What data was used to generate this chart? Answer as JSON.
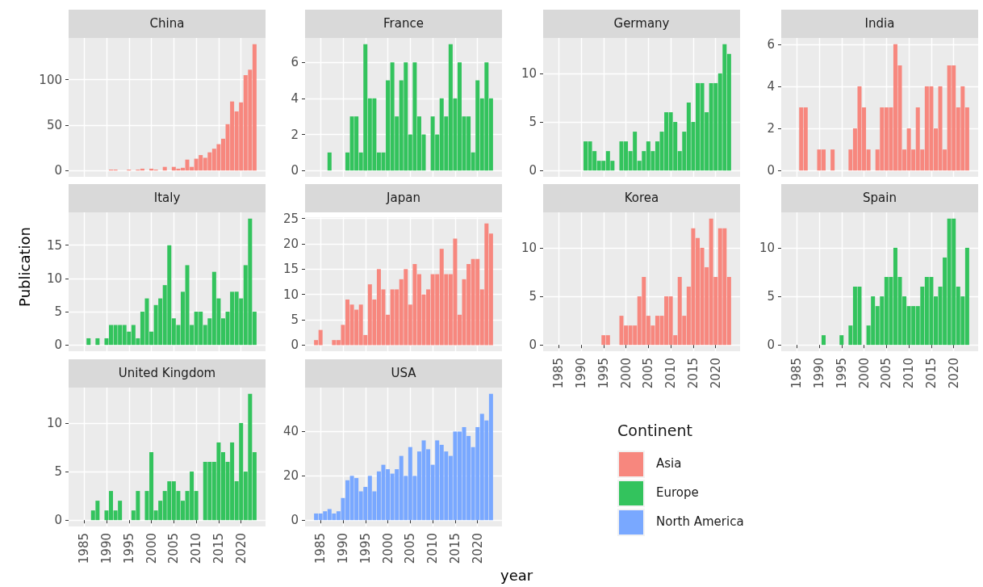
{
  "chart_data": [
    {
      "type": "bar",
      "title": "China",
      "legend_title": "Continent",
      "legend": "right",
      "grid": true,
      "tick_labels": "y",
      "xlim": [
        1981.55,
        2025.45
      ],
      "xticks": [
        1985,
        1990,
        1995,
        2000,
        2005,
        2010,
        2015,
        2020
      ],
      "ylim": [
        -6.95,
        145.95
      ],
      "yticks": [
        0,
        50,
        100
      ],
      "x": [
        1991,
        1992,
        1995,
        1997,
        1998,
        2000,
        2001,
        2003,
        2005,
        2006,
        2007,
        2008,
        2009,
        2010,
        2011,
        2012,
        2013,
        2014,
        2015,
        2016,
        2017,
        2018,
        2019,
        2020,
        2021,
        2022,
        2023
      ],
      "series": [
        {
          "name": "Asia",
          "color": "#f7877e",
          "values": [
            1,
            1,
            1,
            1,
            2,
            2,
            1,
            4,
            4,
            2,
            3,
            12,
            4,
            13,
            17,
            14,
            20,
            24,
            29,
            35,
            51,
            76,
            65,
            75,
            105,
            111,
            139
          ]
        }
      ]
    },
    {
      "type": "bar",
      "title": "France",
      "legend": "right",
      "grid": true,
      "tick_labels": "y",
      "xlim": [
        1981.55,
        2025.45
      ],
      "xticks": [
        1985,
        1990,
        1995,
        2000,
        2005,
        2010,
        2015,
        2020
      ],
      "ylim": [
        -0.35,
        7.35
      ],
      "yticks": [
        0,
        2,
        4,
        6
      ],
      "x": [
        1987,
        1991,
        1992,
        1993,
        1994,
        1995,
        1996,
        1997,
        1998,
        1999,
        2000,
        2001,
        2002,
        2003,
        2004,
        2005,
        2006,
        2007,
        2008,
        2010,
        2011,
        2012,
        2013,
        2014,
        2015,
        2016,
        2017,
        2018,
        2019,
        2020,
        2021,
        2022,
        2023
      ],
      "series": [
        {
          "name": "Europe",
          "color": "#33c35d",
          "values": [
            1,
            1,
            3,
            3,
            1,
            7,
            4,
            4,
            1,
            1,
            5,
            6,
            3,
            5,
            6,
            2,
            6,
            3,
            2,
            3,
            2,
            4,
            3,
            7,
            4,
            6,
            3,
            3,
            1,
            5,
            4,
            6,
            4
          ]
        }
      ]
    },
    {
      "type": "bar",
      "title": "Germany",
      "legend": "right",
      "grid": true,
      "tick_labels": "y",
      "xlim": [
        1981.55,
        2025.45
      ],
      "xticks": [
        1985,
        1990,
        1995,
        2000,
        2005,
        2010,
        2015,
        2020
      ],
      "ylim": [
        -0.65,
        13.65
      ],
      "yticks": [
        0,
        5,
        10
      ],
      "x": [
        1991,
        1992,
        1993,
        1994,
        1995,
        1996,
        1997,
        1999,
        2000,
        2001,
        2002,
        2003,
        2004,
        2005,
        2006,
        2007,
        2008,
        2009,
        2010,
        2011,
        2012,
        2013,
        2014,
        2015,
        2016,
        2017,
        2018,
        2019,
        2020,
        2021,
        2022,
        2023
      ],
      "series": [
        {
          "name": "Europe",
          "color": "#33c35d",
          "values": [
            3,
            3,
            2,
            1,
            1,
            2,
            1,
            3,
            3,
            2,
            4,
            1,
            2,
            3,
            2,
            3,
            4,
            6,
            6,
            5,
            2,
            4,
            7,
            5,
            9,
            9,
            6,
            9,
            9,
            10,
            13,
            12
          ]
        }
      ]
    },
    {
      "type": "bar",
      "title": "India",
      "legend": "right",
      "grid": true,
      "tick_labels": "y",
      "xlim": [
        1981.55,
        2025.45
      ],
      "xticks": [
        1985,
        1990,
        1995,
        2000,
        2005,
        2010,
        2015,
        2020
      ],
      "ylim": [
        -0.3,
        6.3
      ],
      "yticks": [
        0,
        2,
        4,
        6
      ],
      "x": [
        1986,
        1987,
        1990,
        1991,
        1993,
        1997,
        1998,
        1999,
        2000,
        2001,
        2003,
        2004,
        2005,
        2006,
        2007,
        2008,
        2009,
        2010,
        2011,
        2012,
        2013,
        2014,
        2015,
        2016,
        2017,
        2018,
        2019,
        2020,
        2021,
        2022,
        2023
      ],
      "series": [
        {
          "name": "Asia",
          "color": "#f7877e",
          "values": [
            3,
            3,
            1,
            1,
            1,
            1,
            2,
            4,
            3,
            1,
            1,
            3,
            3,
            3,
            6,
            5,
            1,
            2,
            1,
            3,
            1,
            4,
            4,
            2,
            4,
            1,
            5,
            5,
            3,
            4,
            3
          ]
        }
      ]
    },
    {
      "type": "bar",
      "title": "Italy",
      "ylabel": "Publication",
      "legend": "right",
      "grid": true,
      "tick_labels": "y",
      "xlim": [
        1981.55,
        2025.45
      ],
      "xticks": [
        1985,
        1990,
        1995,
        2000,
        2005,
        2010,
        2015,
        2020
      ],
      "ylim": [
        -0.95,
        19.95
      ],
      "yticks": [
        0,
        5,
        10,
        15
      ],
      "x": [
        1986,
        1988,
        1990,
        1991,
        1992,
        1993,
        1994,
        1995,
        1996,
        1997,
        1998,
        1999,
        2000,
        2001,
        2002,
        2003,
        2004,
        2005,
        2006,
        2007,
        2008,
        2009,
        2010,
        2011,
        2012,
        2013,
        2014,
        2015,
        2016,
        2017,
        2018,
        2019,
        2020,
        2021,
        2022,
        2023
      ],
      "series": [
        {
          "name": "Europe",
          "color": "#33c35d",
          "values": [
            1,
            1,
            1,
            3,
            3,
            3,
            3,
            2,
            3,
            1,
            5,
            7,
            2,
            6,
            7,
            9,
            15,
            4,
            3,
            8,
            12,
            3,
            5,
            5,
            3,
            4,
            11,
            7,
            4,
            5,
            8,
            8,
            7,
            12,
            19,
            5
          ]
        }
      ]
    },
    {
      "type": "bar",
      "title": "Japan",
      "legend": "right",
      "grid": true,
      "tick_labels": "y",
      "xlim": [
        1981.55,
        2025.45
      ],
      "xticks": [
        1985,
        1990,
        1995,
        2000,
        2005,
        2010,
        2015,
        2020
      ],
      "ylim": [
        -1.2,
        25.2
      ],
      "yticks": [
        0,
        5,
        10,
        15,
        20,
        25
      ],
      "x": [
        1984,
        1985,
        1988,
        1989,
        1990,
        1991,
        1992,
        1993,
        1994,
        1995,
        1996,
        1997,
        1998,
        1999,
        2000,
        2001,
        2002,
        2003,
        2004,
        2005,
        2006,
        2007,
        2008,
        2009,
        2010,
        2011,
        2012,
        2013,
        2014,
        2015,
        2016,
        2017,
        2018,
        2019,
        2020,
        2021,
        2022,
        2023
      ],
      "series": [
        {
          "name": "Asia",
          "color": "#f7877e",
          "values": [
            1,
            3,
            1,
            1,
            4,
            9,
            8,
            7,
            8,
            2,
            12,
            9,
            15,
            11,
            6,
            11,
            11,
            13,
            15,
            8,
            16,
            14,
            10,
            11,
            14,
            14,
            19,
            14,
            14,
            21,
            6,
            13,
            16,
            17,
            17,
            11,
            24,
            22
          ]
        }
      ]
    },
    {
      "type": "bar",
      "title": "Korea",
      "legend": "right",
      "grid": true,
      "xlim": [
        1981.55,
        2025.45
      ],
      "xticks": [
        1985,
        1990,
        1995,
        2000,
        2005,
        2010,
        2015,
        2020
      ],
      "ylim": [
        -0.65,
        13.65
      ],
      "yticks": [
        0,
        5,
        10
      ],
      "x": [
        1995,
        1996,
        1999,
        2000,
        2001,
        2002,
        2003,
        2004,
        2005,
        2006,
        2007,
        2008,
        2009,
        2010,
        2011,
        2012,
        2013,
        2014,
        2015,
        2016,
        2017,
        2018,
        2019,
        2020,
        2021,
        2022,
        2023
      ],
      "series": [
        {
          "name": "Asia",
          "color": "#f7877e",
          "values": [
            1,
            1,
            3,
            2,
            2,
            2,
            5,
            7,
            3,
            2,
            3,
            3,
            5,
            5,
            1,
            7,
            3,
            6,
            12,
            11,
            10,
            8,
            13,
            7,
            12,
            12,
            7
          ]
        }
      ]
    },
    {
      "type": "bar",
      "title": "Spain",
      "legend": "right",
      "grid": true,
      "xlim": [
        1981.55,
        2025.45
      ],
      "xticks": [
        1985,
        1990,
        1995,
        2000,
        2005,
        2010,
        2015,
        2020
      ],
      "ylim": [
        -0.65,
        13.65
      ],
      "yticks": [
        0,
        5,
        10
      ],
      "x": [
        1991,
        1995,
        1997,
        1998,
        1999,
        2001,
        2002,
        2003,
        2004,
        2005,
        2006,
        2007,
        2008,
        2009,
        2010,
        2011,
        2012,
        2013,
        2014,
        2015,
        2016,
        2017,
        2018,
        2019,
        2020,
        2021,
        2022,
        2023
      ],
      "series": [
        {
          "name": "Europe",
          "color": "#33c35d",
          "values": [
            1,
            1,
            2,
            6,
            6,
            2,
            5,
            4,
            5,
            7,
            7,
            10,
            7,
            5,
            4,
            4,
            4,
            6,
            7,
            7,
            5,
            6,
            9,
            13,
            13,
            6,
            5,
            10
          ]
        }
      ]
    },
    {
      "type": "bar",
      "title": "United Kingdom",
      "legend": "right",
      "grid": true,
      "xlim": [
        1981.55,
        2025.45
      ],
      "xticks": [
        1985,
        1990,
        1995,
        2000,
        2005,
        2010,
        2015,
        2020
      ],
      "ylim": [
        -0.65,
        13.65
      ],
      "yticks": [
        0,
        5,
        10
      ],
      "x": [
        1987,
        1988,
        1990,
        1991,
        1992,
        1993,
        1996,
        1997,
        1999,
        2000,
        2001,
        2002,
        2003,
        2004,
        2005,
        2006,
        2007,
        2008,
        2009,
        2010,
        2012,
        2013,
        2014,
        2015,
        2016,
        2017,
        2018,
        2019,
        2020,
        2021,
        2022,
        2023
      ],
      "series": [
        {
          "name": "Europe",
          "color": "#33c35d",
          "values": [
            1,
            2,
            1,
            3,
            1,
            2,
            1,
            3,
            3,
            7,
            1,
            2,
            3,
            4,
            4,
            3,
            2,
            3,
            5,
            3,
            6,
            6,
            6,
            8,
            7,
            6,
            8,
            4,
            10,
            5,
            13,
            7
          ]
        }
      ]
    },
    {
      "type": "bar",
      "title": "USA",
      "xlabel": "year",
      "legend": "right",
      "grid": true,
      "xlim": [
        1981.55,
        2025.45
      ],
      "xticks": [
        1985,
        1990,
        1995,
        2000,
        2005,
        2010,
        2015,
        2020
      ],
      "ylim": [
        -2.85,
        59.85
      ],
      "yticks": [
        0,
        20,
        40
      ],
      "x": [
        1984,
        1985,
        1986,
        1987,
        1988,
        1989,
        1990,
        1991,
        1992,
        1993,
        1994,
        1995,
        1996,
        1997,
        1998,
        1999,
        2000,
        2001,
        2002,
        2003,
        2004,
        2005,
        2006,
        2007,
        2008,
        2009,
        2010,
        2011,
        2012,
        2013,
        2014,
        2015,
        2016,
        2017,
        2018,
        2019,
        2020,
        2021,
        2022,
        2023
      ],
      "series": [
        {
          "name": "North America",
          "color": "#79a8ff",
          "values": [
            3,
            3,
            4,
            5,
            3,
            4,
            10,
            18,
            20,
            19,
            13,
            15,
            20,
            13,
            22,
            25,
            23,
            21,
            23,
            29,
            20,
            33,
            20,
            31,
            36,
            32,
            25,
            36,
            34,
            31,
            29,
            40,
            40,
            42,
            38,
            33,
            42,
            48,
            45,
            57
          ]
        }
      ]
    }
  ]
}
